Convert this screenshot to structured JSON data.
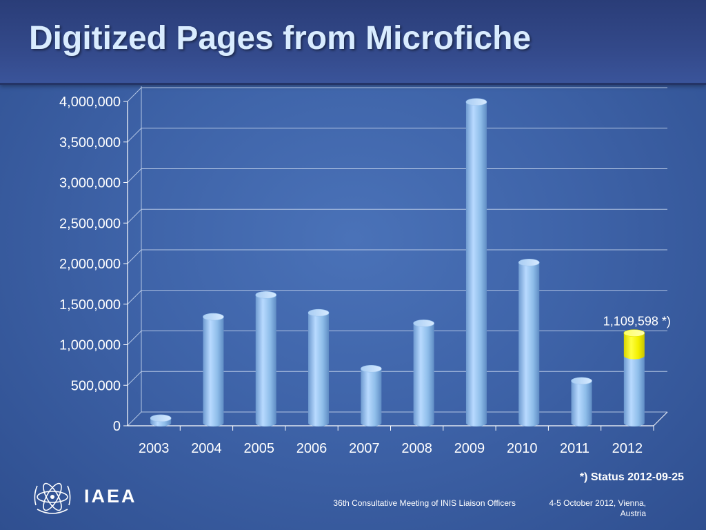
{
  "title": "Digitized Pages from Microfiche",
  "status_note": "*) Status 2012-09-25",
  "logo_text": "IAEA",
  "footer": {
    "meeting": "36th Consultative Meeting of INIS Liaison Officers",
    "date": "4-5 October 2012, Vienna, Austria"
  },
  "colors": {
    "bar": "#8fc0ee",
    "bar_highlight": "#ffff00",
    "background": "#3e63a8",
    "title": "#d9ecff"
  },
  "chart_data": {
    "type": "bar",
    "style": "3d-cylinder",
    "categories": [
      "2003",
      "2004",
      "2005",
      "2006",
      "2007",
      "2008",
      "2009",
      "2010",
      "2011",
      "2012"
    ],
    "values": [
      60000,
      1310000,
      1580000,
      1360000,
      670000,
      1230000,
      3960000,
      1980000,
      520000,
      1109598
    ],
    "stacked_segments_2012": {
      "base": 830000,
      "highlight": 279598
    },
    "ylim": [
      0,
      4000000
    ],
    "yticks": [
      0,
      500000,
      1000000,
      1500000,
      2000000,
      2500000,
      3000000,
      3500000,
      4000000
    ],
    "ytick_labels": [
      "0",
      "500,000",
      "1,000,000",
      "1,500,000",
      "2,000,000",
      "2,500,000",
      "3,000,000",
      "3,500,000",
      "4,000,000"
    ],
    "annotations": [
      {
        "category": "2012",
        "text": "1,109,598 *)"
      }
    ],
    "grid": true,
    "legend": "none",
    "title": "",
    "xlabel": "",
    "ylabel": ""
  }
}
